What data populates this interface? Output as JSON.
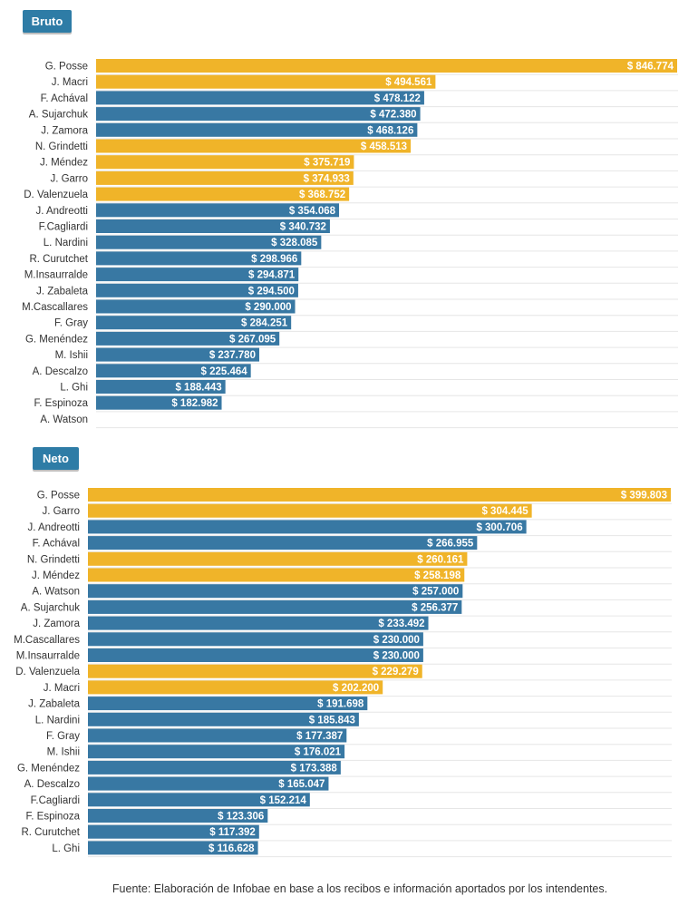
{
  "colors": {
    "tab": "#2e7ca6",
    "blue": "#3878a3",
    "gold": "#f0b429",
    "row_line": "#e6e6e6",
    "label": "#333333",
    "value": "#ffffff"
  },
  "source": "Fuente: Elaboración de Infobae en base a los recibos e información aportados por los intendentes.",
  "chart_data": [
    {
      "type": "bar",
      "orientation": "horizontal",
      "title": "Bruto",
      "value_prefix": "$ ",
      "xlim": [
        0,
        846774
      ],
      "categories": [
        "G. Posse",
        "J. Macri",
        "F. Achával",
        "A. Sujarchuk",
        "J. Zamora",
        "N. Grindetti",
        "J. Méndez",
        "J. Garro",
        "D. Valenzuela",
        "J. Andreotti",
        "F.Cagliardi",
        "L. Nardini",
        "R. Curutchet",
        "M.Insaurralde",
        "J. Zabaleta",
        "M.Cascallares",
        "F. Gray",
        "G. Menéndez",
        "M. Ishii",
        "A. Descalzo",
        "L. Ghi",
        "F. Espinoza",
        "A. Watson"
      ],
      "values": [
        846774,
        494561,
        478122,
        472380,
        468126,
        458513,
        375719,
        374933,
        368752,
        354068,
        340732,
        328085,
        298966,
        294871,
        294500,
        290000,
        284251,
        267095,
        237780,
        225464,
        188443,
        182982,
        null
      ],
      "value_labels": [
        "846.774",
        "494.561",
        "478.122",
        "472.380",
        "468.126",
        "458.513",
        "375.719",
        "374.933",
        "368.752",
        "354.068",
        "340.732",
        "328.085",
        "298.966",
        "294.871",
        "294.500",
        "290.000",
        "284.251",
        "267.095",
        "237.780",
        "225.464",
        "188.443",
        "182.982",
        ""
      ],
      "highlight": [
        true,
        true,
        false,
        false,
        false,
        true,
        true,
        true,
        true,
        false,
        false,
        false,
        false,
        false,
        false,
        false,
        false,
        false,
        false,
        false,
        false,
        false,
        false
      ]
    },
    {
      "type": "bar",
      "orientation": "horizontal",
      "title": "Neto",
      "value_prefix": "$ ",
      "xlim": [
        0,
        399803
      ],
      "categories": [
        "G. Posse",
        "J. Garro",
        "J. Andreotti",
        "F. Achával",
        "N. Grindetti",
        "J. Méndez",
        "A. Watson",
        "A. Sujarchuk",
        "J. Zamora",
        "M.Cascallares",
        "M.Insaurralde",
        "D. Valenzuela",
        "J. Macri",
        "J. Zabaleta",
        "L. Nardini",
        "F. Gray",
        "M. Ishii",
        "G. Menéndez",
        "A. Descalzo",
        "F.Cagliardi",
        "F. Espinoza",
        "R. Curutchet",
        "L. Ghi"
      ],
      "values": [
        399803,
        304445,
        300706,
        266955,
        260161,
        258198,
        257000,
        256377,
        233492,
        230000,
        230000,
        229279,
        202200,
        191698,
        185843,
        177387,
        176021,
        173388,
        165047,
        152214,
        123306,
        117392,
        116628
      ],
      "value_labels": [
        "399.803",
        "304.445",
        "300.706",
        "266.955",
        "260.161",
        "258.198",
        "257.000",
        "256.377",
        "233.492",
        "230.000",
        "230.000",
        "229.279",
        "202.200",
        "191.698",
        "185.843",
        "177.387",
        "176.021",
        "173.388",
        "165.047",
        "152.214",
        "123.306",
        "117.392",
        "116.628"
      ],
      "highlight": [
        true,
        true,
        false,
        false,
        true,
        true,
        false,
        false,
        false,
        false,
        false,
        true,
        true,
        false,
        false,
        false,
        false,
        false,
        false,
        false,
        false,
        false,
        false
      ]
    }
  ]
}
